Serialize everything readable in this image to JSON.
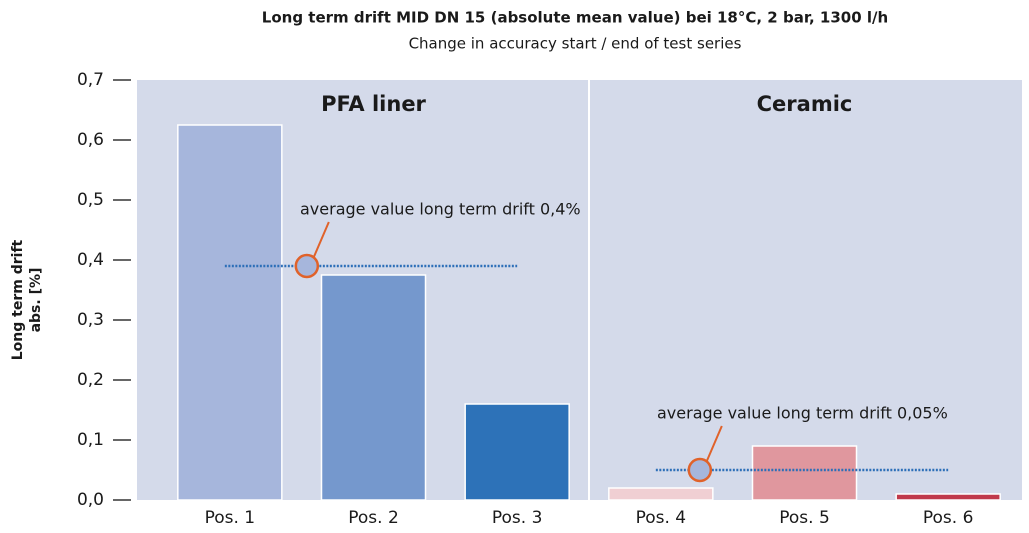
{
  "chart_data": {
    "type": "bar",
    "title": "Long term drift MID DN 15 (absolute mean value) bei 18°C, 2 bar, 1300 l/h",
    "subtitle": "Change in accuracy start / end of test series",
    "y_label": [
      "Long term drift",
      "abs. [%]"
    ],
    "groups": [
      "PFA liner",
      "Ceramic"
    ],
    "categories": [
      "Pos. 1",
      "Pos. 2",
      "Pos. 3",
      "Pos. 4",
      "Pos. 5",
      "Pos. 6"
    ],
    "values": [
      0.625,
      0.375,
      0.16,
      0.02,
      0.09,
      0.01
    ],
    "colors": [
      "#a6b6dc",
      "#7598cd",
      "#2d72b8",
      "#f0cfd3",
      "#e0979e",
      "#c0394b"
    ],
    "ylim": [
      0,
      0.7
    ],
    "yticks": [
      {
        "value": 0,
        "label": "0,0"
      },
      {
        "value": 0.1,
        "label": "0,1"
      },
      {
        "value": 0.2,
        "label": "0,2"
      },
      {
        "value": 0.3,
        "label": "0,3"
      },
      {
        "value": 0.4,
        "label": "0,4"
      },
      {
        "value": 0.5,
        "label": "0,5"
      },
      {
        "value": 0.6,
        "label": "0,6"
      },
      {
        "value": 0.7,
        "label": "0,7"
      }
    ],
    "annotations": [
      {
        "text": "average value long term drift 0,4%",
        "value": 0.39
      },
      {
        "text": "average value long term drift 0,05%",
        "value": 0.05
      }
    ]
  }
}
